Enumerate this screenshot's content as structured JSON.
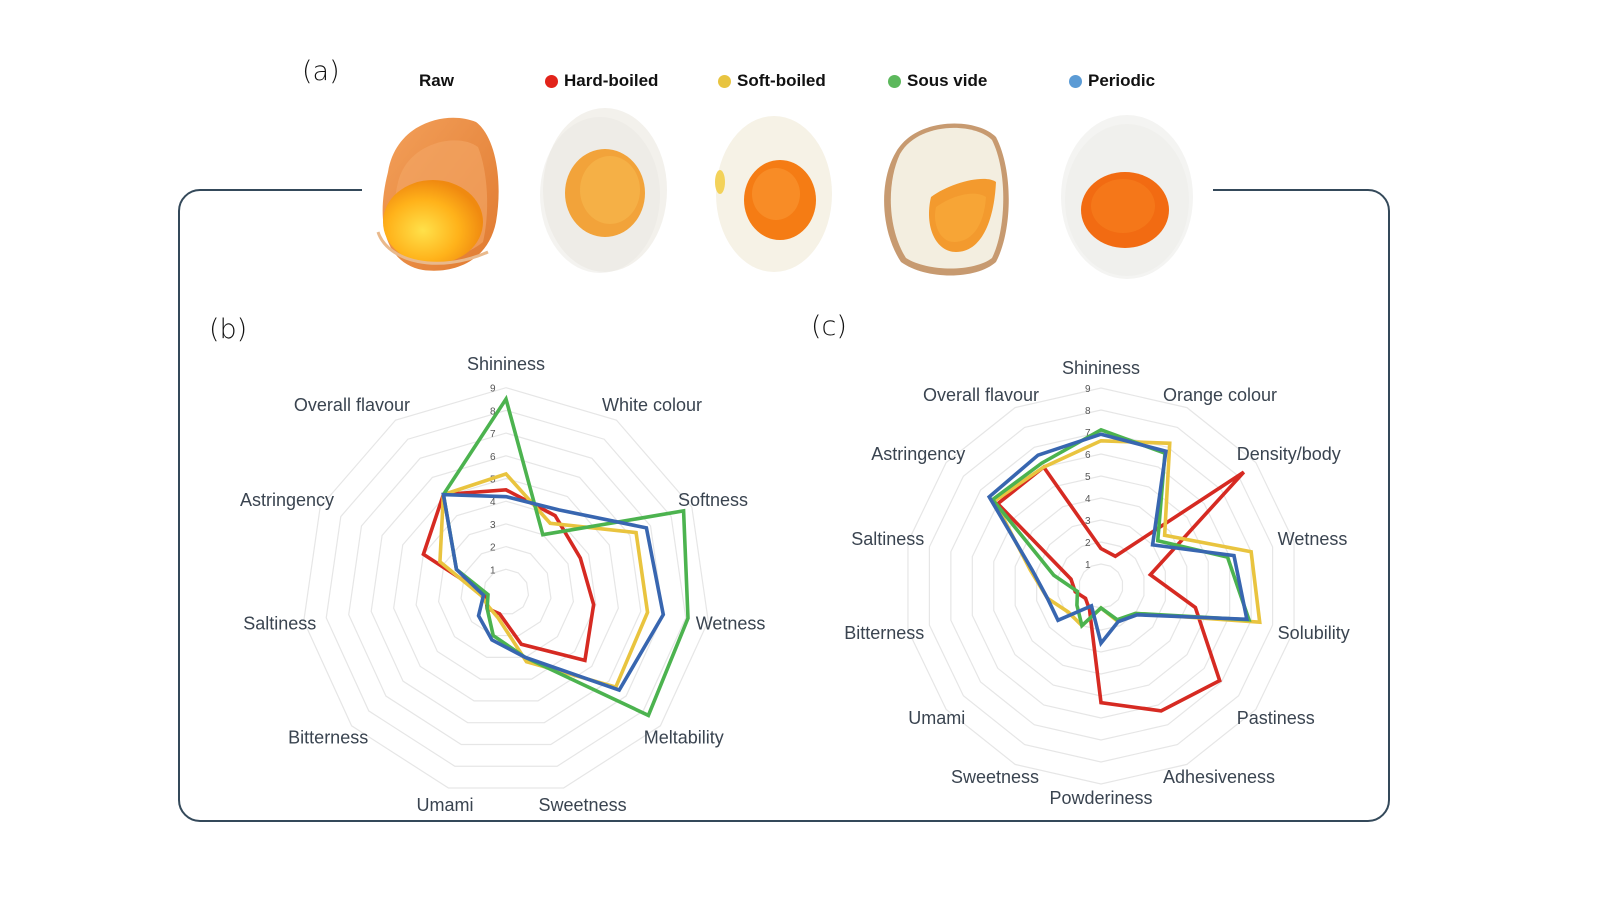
{
  "panels": {
    "a": "(a)",
    "b": "(b)",
    "c": "(c)"
  },
  "legend": [
    {
      "label": "Raw",
      "color": null
    },
    {
      "label": "Hard-boiled",
      "color": "#e2231a"
    },
    {
      "label": "Soft-boiled",
      "color": "#e8c440"
    },
    {
      "label": "Sous vide",
      "color": "#5cb85c"
    },
    {
      "label": "Periodic",
      "color": "#5b9bd5"
    }
  ],
  "eggs": [
    {
      "name": "Raw",
      "type": "raw-egg-in-shell"
    },
    {
      "name": "Hard-boiled",
      "type": "hard-boiled-egg-half"
    },
    {
      "name": "Soft-boiled",
      "type": "soft-boiled-egg-half"
    },
    {
      "name": "Sous vide",
      "type": "sous-vide-egg-half"
    },
    {
      "name": "Periodic",
      "type": "periodic-egg-half"
    }
  ],
  "chart_data": [
    {
      "type": "radar",
      "panel": "(b)",
      "title": "",
      "categories": [
        "Shininess",
        "White colour",
        "Softness",
        "Wetness",
        "Meltability",
        "Sweetness",
        "Umami",
        "Bitterness",
        "Saltiness",
        "Astringency",
        "Overall flavour"
      ],
      "range": [
        0,
        9
      ],
      "ticks": [
        "1",
        "2",
        "3",
        "4",
        "5",
        "6",
        "7",
        "8",
        "9"
      ],
      "grid": true,
      "series": [
        {
          "name": "Hard-boiled",
          "color": "#d62a22",
          "values": [
            4.5,
            4.0,
            3.6,
            3.9,
            4.6,
            2.4,
            1.0,
            1.1,
            0.9,
            4.0,
            5.1
          ]
        },
        {
          "name": "Soft-boiled",
          "color": "#e9c43f",
          "values": [
            5.2,
            3.6,
            6.3,
            6.3,
            6.4,
            3.2,
            1.2,
            1.0,
            1.1,
            3.2,
            5.1
          ]
        },
        {
          "name": "Sous vide",
          "color": "#4cb34f",
          "values": [
            8.5,
            3.0,
            8.6,
            8.1,
            8.3,
            3.0,
            2.0,
            1.1,
            0.8,
            2.4,
            5.1
          ]
        },
        {
          "name": "Periodic",
          "color": "#3866b0",
          "values": [
            4.2,
            4.3,
            6.8,
            7.0,
            6.6,
            3.0,
            2.2,
            1.6,
            1.0,
            2.4,
            5.1
          ]
        }
      ]
    },
    {
      "type": "radar",
      "panel": "(c)",
      "title": "",
      "categories": [
        "Shininess",
        "Orange colour",
        "Density/body",
        "Wetness",
        "Solubility",
        "Pastiness",
        "Adhesiveness",
        "Powderiness",
        "Sweetness",
        "Umami",
        "Bitterness",
        "Saltiness",
        "Astringency",
        "Overall flavour"
      ],
      "range": [
        0,
        9
      ],
      "ticks": [
        "1",
        "2",
        "3",
        "4",
        "5",
        "6",
        "7",
        "8",
        "9"
      ],
      "grid": true,
      "series": [
        {
          "name": "Hard-boiled",
          "color": "#d62a22",
          "values": [
            1.7,
            1.5,
            8.3,
            2.3,
            4.4,
            6.9,
            6.3,
            5.3,
            1.2,
            0.9,
            1.2,
            1.4,
            6.0,
            6.0
          ]
        },
        {
          "name": "Soft-boiled",
          "color": "#e9c43f",
          "values": [
            6.6,
            7.2,
            3.7,
            7.0,
            7.4,
            2.0,
            1.8,
            1.0,
            2.0,
            1.9,
            2.5,
            3.3,
            6.2,
            6.0
          ]
        },
        {
          "name": "Sous vide",
          "color": "#4cb34f",
          "values": [
            7.1,
            6.7,
            3.3,
            5.9,
            6.9,
            2.0,
            1.7,
            1.0,
            2.0,
            1.4,
            1.1,
            2.2,
            6.3,
            6.2
          ]
        },
        {
          "name": "Periodic",
          "color": "#3866b0",
          "values": [
            6.9,
            6.8,
            3.0,
            6.2,
            6.8,
            2.1,
            1.8,
            2.6,
            1.0,
            2.5,
            2.5,
            3.2,
            6.5,
            6.6
          ]
        }
      ]
    }
  ]
}
